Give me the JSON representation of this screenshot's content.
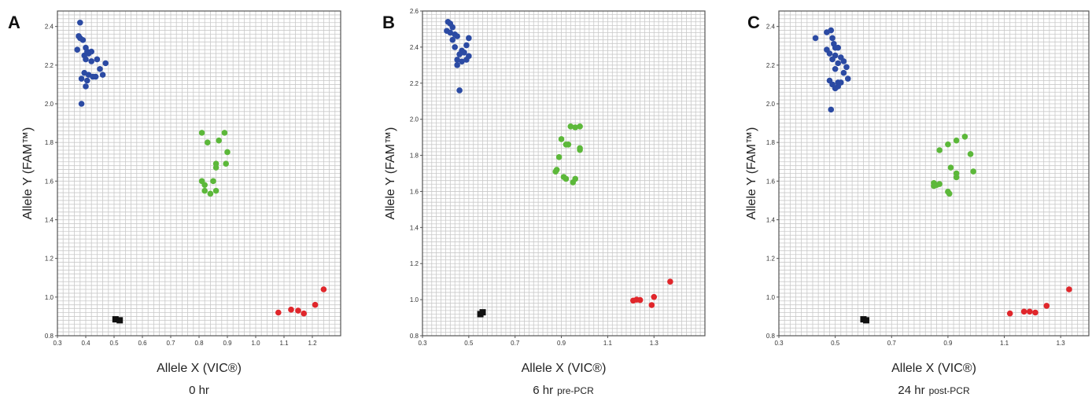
{
  "chart_data": [
    {
      "type": "scatter",
      "panel_label": "A",
      "xlabel": "Allele X (VIC®)",
      "ylabel": "Allele Y (FAM™)",
      "caption_main": "0 hr",
      "caption_sub": "",
      "xlim": [
        0.3,
        1.3
      ],
      "ylim": [
        0.8,
        2.48
      ],
      "xticks": [
        "0.3",
        "0.4",
        "0.5",
        "0.6",
        "0.7",
        "0.8",
        "0.9",
        "1.0",
        "1.1",
        "1.2"
      ],
      "yticks": [
        "0.8",
        "1.0",
        "1.2",
        "1.4",
        "1.6",
        "1.8",
        "2.0",
        "2.2",
        "2.4"
      ],
      "grid": true,
      "series": [
        {
          "color": "#2b4aa3",
          "marker": "circle",
          "points": [
            [
              0.38,
              2.42
            ],
            [
              0.375,
              2.35
            ],
            [
              0.38,
              2.34
            ],
            [
              0.39,
              2.33
            ],
            [
              0.37,
              2.28
            ],
            [
              0.4,
              2.29
            ],
            [
              0.405,
              2.27
            ],
            [
              0.42,
              2.27
            ],
            [
              0.41,
              2.26
            ],
            [
              0.395,
              2.25
            ],
            [
              0.4,
              2.23
            ],
            [
              0.42,
              2.22
            ],
            [
              0.44,
              2.23
            ],
            [
              0.47,
              2.21
            ],
            [
              0.45,
              2.18
            ],
            [
              0.395,
              2.16
            ],
            [
              0.41,
              2.15
            ],
            [
              0.425,
              2.14
            ],
            [
              0.435,
              2.14
            ],
            [
              0.46,
              2.15
            ],
            [
              0.385,
              2.13
            ],
            [
              0.405,
              2.12
            ],
            [
              0.4,
              2.09
            ],
            [
              0.385,
              2.0
            ]
          ]
        },
        {
          "color": "#5cb83a",
          "marker": "circle",
          "points": [
            [
              0.81,
              1.85
            ],
            [
              0.83,
              1.8
            ],
            [
              0.87,
              1.81
            ],
            [
              0.89,
              1.85
            ],
            [
              0.9,
              1.75
            ],
            [
              0.86,
              1.69
            ],
            [
              0.86,
              1.67
            ],
            [
              0.895,
              1.69
            ],
            [
              0.81,
              1.6
            ],
            [
              0.82,
              1.58
            ],
            [
              0.85,
              1.6
            ],
            [
              0.86,
              1.55
            ],
            [
              0.82,
              1.55
            ],
            [
              0.84,
              1.535
            ]
          ]
        },
        {
          "color": "#e0262b",
          "marker": "circle",
          "points": [
            [
              1.08,
              0.92
            ],
            [
              1.125,
              0.935
            ],
            [
              1.15,
              0.93
            ],
            [
              1.17,
              0.915
            ],
            [
              1.21,
              0.96
            ],
            [
              1.24,
              1.04
            ]
          ]
        },
        {
          "color": "#111111",
          "marker": "square",
          "points": [
            [
              0.505,
              0.885
            ],
            [
              0.52,
              0.88
            ]
          ]
        }
      ]
    },
    {
      "type": "scatter",
      "panel_label": "B",
      "xlabel": "Allele X (VIC®)",
      "ylabel": "Allele Y (FAM™)",
      "caption_main": "6 hr",
      "caption_sub": "pre-PCR",
      "xlim": [
        0.3,
        1.52
      ],
      "ylim": [
        0.8,
        2.6
      ],
      "xticks": [
        "0.3",
        "0.5",
        "0.7",
        "0.9",
        "1.1",
        "1.3"
      ],
      "yticks": [
        "0.8",
        "1.0",
        "1.2",
        "1.4",
        "1.6",
        "1.8",
        "2.0",
        "2.2",
        "2.4",
        "2.6"
      ],
      "grid": true,
      "series": [
        {
          "color": "#2b4aa3",
          "marker": "circle",
          "points": [
            [
              0.41,
              2.54
            ],
            [
              0.42,
              2.53
            ],
            [
              0.43,
              2.51
            ],
            [
              0.405,
              2.49
            ],
            [
              0.42,
              2.48
            ],
            [
              0.44,
              2.47
            ],
            [
              0.45,
              2.46
            ],
            [
              0.43,
              2.44
            ],
            [
              0.5,
              2.45
            ],
            [
              0.49,
              2.41
            ],
            [
              0.44,
              2.4
            ],
            [
              0.47,
              2.38
            ],
            [
              0.46,
              2.36
            ],
            [
              0.48,
              2.37
            ],
            [
              0.5,
              2.35
            ],
            [
              0.45,
              2.33
            ],
            [
              0.47,
              2.32
            ],
            [
              0.49,
              2.33
            ],
            [
              0.45,
              2.3
            ],
            [
              0.46,
              2.16
            ]
          ]
        },
        {
          "color": "#5cb83a",
          "marker": "circle",
          "points": [
            [
              0.94,
              1.96
            ],
            [
              0.96,
              1.955
            ],
            [
              0.98,
              1.96
            ],
            [
              0.9,
              1.89
            ],
            [
              0.92,
              1.86
            ],
            [
              0.93,
              1.86
            ],
            [
              0.98,
              1.84
            ],
            [
              0.98,
              1.83
            ],
            [
              0.89,
              1.79
            ],
            [
              0.88,
              1.72
            ],
            [
              0.875,
              1.71
            ],
            [
              0.91,
              1.68
            ],
            [
              0.92,
              1.67
            ],
            [
              0.96,
              1.67
            ],
            [
              0.95,
              1.65
            ]
          ]
        },
        {
          "color": "#e0262b",
          "marker": "circle",
          "points": [
            [
              1.21,
              0.995
            ],
            [
              1.225,
              1.0
            ],
            [
              1.24,
              0.998
            ],
            [
              1.29,
              0.97
            ],
            [
              1.3,
              1.015
            ],
            [
              1.37,
              1.1
            ]
          ]
        },
        {
          "color": "#111111",
          "marker": "square",
          "points": [
            [
              0.55,
              0.92
            ],
            [
              0.56,
              0.93
            ]
          ]
        }
      ]
    },
    {
      "type": "scatter",
      "panel_label": "C",
      "xlabel": "Allele X (VIC®)",
      "ylabel": "Allele Y (FAM™)",
      "caption_main": "24 hr",
      "caption_sub": "post-PCR",
      "xlim": [
        0.3,
        1.4
      ],
      "ylim": [
        0.8,
        2.48
      ],
      "xticks": [
        "0.3",
        "0.5",
        "0.7",
        "0.9",
        "1.1",
        "1.3"
      ],
      "yticks": [
        "0.8",
        "1.0",
        "1.2",
        "1.4",
        "1.6",
        "1.8",
        "2.0",
        "2.2",
        "2.4"
      ],
      "grid": true,
      "series": [
        {
          "color": "#2b4aa3",
          "marker": "circle",
          "points": [
            [
              0.47,
              2.37
            ],
            [
              0.485,
              2.38
            ],
            [
              0.43,
              2.34
            ],
            [
              0.49,
              2.34
            ],
            [
              0.495,
              2.31
            ],
            [
              0.47,
              2.28
            ],
            [
              0.5,
              2.29
            ],
            [
              0.51,
              2.29
            ],
            [
              0.48,
              2.26
            ],
            [
              0.5,
              2.25
            ],
            [
              0.52,
              2.24
            ],
            [
              0.49,
              2.23
            ],
            [
              0.53,
              2.22
            ],
            [
              0.51,
              2.21
            ],
            [
              0.54,
              2.19
            ],
            [
              0.5,
              2.18
            ],
            [
              0.53,
              2.16
            ],
            [
              0.545,
              2.13
            ],
            [
              0.48,
              2.12
            ],
            [
              0.49,
              2.1
            ],
            [
              0.51,
              2.11
            ],
            [
              0.52,
              2.11
            ],
            [
              0.5,
              2.08
            ],
            [
              0.51,
              2.09
            ],
            [
              0.485,
              1.97
            ]
          ]
        },
        {
          "color": "#5cb83a",
          "marker": "circle",
          "points": [
            [
              0.96,
              1.83
            ],
            [
              0.93,
              1.81
            ],
            [
              0.9,
              1.79
            ],
            [
              0.87,
              1.76
            ],
            [
              0.98,
              1.74
            ],
            [
              0.91,
              1.67
            ],
            [
              0.93,
              1.64
            ],
            [
              0.93,
              1.62
            ],
            [
              0.99,
              1.65
            ],
            [
              0.85,
              1.59
            ],
            [
              0.86,
              1.58
            ],
            [
              0.87,
              1.585
            ],
            [
              0.85,
              1.575
            ],
            [
              0.9,
              1.545
            ],
            [
              0.905,
              1.535
            ]
          ]
        },
        {
          "color": "#e0262b",
          "marker": "circle",
          "points": [
            [
              1.12,
              0.915
            ],
            [
              1.17,
              0.925
            ],
            [
              1.19,
              0.925
            ],
            [
              1.21,
              0.92
            ],
            [
              1.25,
              0.955
            ],
            [
              1.33,
              1.04
            ]
          ]
        },
        {
          "color": "#111111",
          "marker": "square",
          "points": [
            [
              0.6,
              0.885
            ],
            [
              0.61,
              0.88
            ]
          ]
        }
      ]
    }
  ]
}
